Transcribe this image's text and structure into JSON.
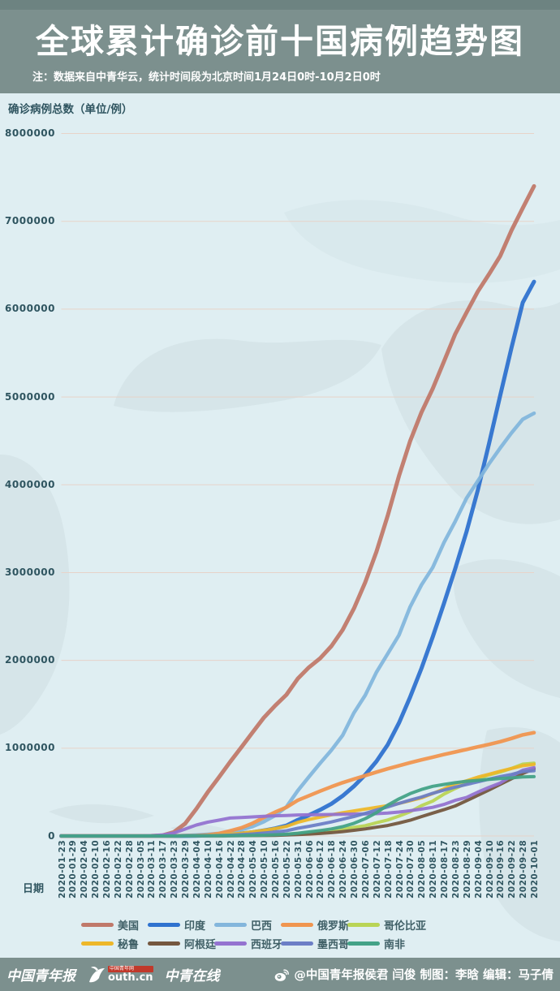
{
  "header": {
    "title": "全球累计确诊前十国病例趋势图",
    "note": "注：数据来自中青华云，统计时间段为北京时间1月24日0时-10月2日0时"
  },
  "footer": {
    "logo_cyd": "中国青年报",
    "logo_youth_badge": "中国青年网",
    "logo_youth_text": "outh.cn",
    "logo_cyol": "中青在线",
    "credit": "@中国青年报侯君 闫俊 制图：李晗 编辑：马子倩"
  },
  "colors": {
    "header_bg": "#7c908e",
    "chart_bg": "#dfeef2",
    "grid": "#e7d3c9",
    "axis_text": "#2f5560",
    "map_silhouette": "#ccdde0"
  },
  "chart_data": {
    "type": "line",
    "title": "全球累计确诊前十国病例趋势图",
    "ylabel": "确诊病例总数（单位/例）",
    "xlabel": "日期",
    "ylim": [
      0,
      8000000
    ],
    "y_ticks": [
      0,
      1000000,
      2000000,
      3000000,
      4000000,
      5000000,
      6000000,
      7000000,
      8000000
    ],
    "grid": true,
    "legend_position": "bottom",
    "x": [
      "2020-01-23",
      "2020-01-29",
      "2020-02-04",
      "2020-02-10",
      "2020-02-16",
      "2020-02-22",
      "2020-02-28",
      "2020-03-05",
      "2020-03-11",
      "2020-03-17",
      "2020-03-23",
      "2020-03-29",
      "2020-04-04",
      "2020-04-10",
      "2020-04-16",
      "2020-04-22",
      "2020-04-28",
      "2020-05-04",
      "2020-05-10",
      "2020-05-16",
      "2020-05-22",
      "2020-05-31",
      "2020-06-06",
      "2020-06-12",
      "2020-06-18",
      "2020-06-24",
      "2020-06-30",
      "2020-07-06",
      "2020-07-12",
      "2020-07-18",
      "2020-07-24",
      "2020-07-30",
      "2020-08-05",
      "2020-08-11",
      "2020-08-17",
      "2020-08-23",
      "2020-08-29",
      "2020-09-04",
      "2020-09-10",
      "2020-09-16",
      "2020-09-22",
      "2020-09-28",
      "2020-10-01"
    ],
    "series": [
      {
        "key": "usa",
        "name": "美国",
        "color": "#c0796a",
        "width": 5,
        "values": [
          1,
          5,
          11,
          12,
          15,
          35,
          60,
          220,
          1300,
          6400,
          43800,
          140900,
          308850,
          496500,
          667800,
          842600,
          1010500,
          1180000,
          1347900,
          1484300,
          1608600,
          1790200,
          1920000,
          2023300,
          2163300,
          2347100,
          2590600,
          2888700,
          3236100,
          3647700,
          4100000,
          4498500,
          4823900,
          5094400,
          5403200,
          5715600,
          5961000,
          6200000,
          6397200,
          6606300,
          6897600,
          7150600,
          7400000
        ]
      },
      {
        "key": "india",
        "name": "印度",
        "color": "#2f72cf",
        "width": 5,
        "values": [
          0,
          0,
          0,
          0,
          3,
          3,
          3,
          30,
          62,
          140,
          430,
          1000,
          2900,
          6700,
          12400,
          20000,
          29400,
          42500,
          62900,
          85900,
          118400,
          182100,
          236700,
          297500,
          366900,
          456200,
          566800,
          697400,
          849500,
          1038700,
          1288000,
          1583800,
          1908300,
          2268700,
          2647700,
          3044900,
          3463900,
          3936700,
          4465900,
          5020400,
          5562700,
          6074700,
          6312600
        ]
      },
      {
        "key": "brazil",
        "name": "巴西",
        "color": "#83b6dc",
        "width": 4.5,
        "values": [
          0,
          0,
          0,
          0,
          0,
          0,
          1,
          4,
          34,
          290,
          1900,
          4260,
          10300,
          18100,
          28900,
          45800,
          71900,
          107800,
          162700,
          233100,
          330900,
          514800,
          672800,
          828800,
          978100,
          1145900,
          1402000,
          1603000,
          1864700,
          2074900,
          2287400,
          2610100,
          2859100,
          3057500,
          3340200,
          3582400,
          3846200,
          4041600,
          4238400,
          4419100,
          4591400,
          4745500,
          4813600
        ]
      },
      {
        "key": "russia",
        "name": "俄罗斯",
        "color": "#f0954f",
        "width": 4.5,
        "values": [
          0,
          0,
          2,
          2,
          2,
          2,
          2,
          4,
          20,
          114,
          438,
          1530,
          4700,
          11900,
          27900,
          57900,
          93500,
          145200,
          209700,
          272000,
          326400,
          405800,
          458100,
          511400,
          561100,
          606900,
          647800,
          687800,
          727200,
          765400,
          800800,
          834500,
          866600,
          897600,
          927700,
          956700,
          985300,
          1015100,
          1042800,
          1073800,
          1111200,
          1151400,
          1176300
        ]
      },
      {
        "key": "colombia",
        "name": "哥伦比亚",
        "color": "#b9d455",
        "width": 4,
        "values": [
          0,
          0,
          0,
          0,
          0,
          0,
          0,
          0,
          3,
          65,
          277,
          700,
          1400,
          2400,
          3100,
          4300,
          5600,
          7700,
          10500,
          14200,
          18300,
          29400,
          36600,
          45300,
          60200,
          77100,
          97800,
          117100,
          150400,
          182100,
          226400,
          276100,
          345700,
          397600,
          476600,
          541100,
          599900,
          650100,
          694700,
          728600,
          770400,
          818200,
          829700
        ]
      },
      {
        "key": "peru",
        "name": "秘鲁",
        "color": "#edb72a",
        "width": 4,
        "values": [
          0,
          0,
          0,
          0,
          0,
          0,
          0,
          0,
          17,
          117,
          395,
          852,
          1700,
          5900,
          11500,
          19300,
          31200,
          47400,
          65000,
          84500,
          108800,
          155700,
          187400,
          214800,
          240900,
          264700,
          285200,
          305700,
          326200,
          345500,
          370500,
          400700,
          433100,
          483100,
          535900,
          594300,
          629000,
          670100,
          702800,
          738000,
          768900,
          800100,
          814800
        ]
      },
      {
        "key": "argentina",
        "name": "阿根廷",
        "color": "#74573f",
        "width": 4,
        "values": [
          0,
          0,
          0,
          0,
          0,
          0,
          0,
          1,
          19,
          65,
          266,
          745,
          1450,
          1975,
          2571,
          3144,
          4003,
          4887,
          5776,
          7479,
          10649,
          16851,
          22020,
          28764,
          37510,
          49851,
          64530,
          80447,
          100166,
          119301,
          148027,
          178996,
          220682,
          260911,
          299126,
          342154,
          401239,
          461882,
          524198,
          589012,
          652174,
          711325,
          765002
        ]
      },
      {
        "key": "spain",
        "name": "西班牙",
        "color": "#9473d0",
        "width": 4,
        "values": [
          0,
          0,
          1,
          2,
          2,
          2,
          32,
          260,
          2280,
          11300,
          33100,
          78800,
          124700,
          157000,
          180700,
          204200,
          210800,
          217500,
          224400,
          230200,
          234000,
          239400,
          241300,
          243000,
          245300,
          247100,
          249300,
          252100,
          254600,
          260300,
          272400,
          288500,
          305800,
          326600,
          359100,
          405400,
          439300,
          498900,
          554100,
          603200,
          682300,
          748300,
          778600
        ]
      },
      {
        "key": "mexico",
        "name": "墨西哥",
        "color": "#6c7ec6",
        "width": 4,
        "values": [
          0,
          0,
          0,
          0,
          0,
          0,
          0,
          5,
          11,
          93,
          367,
          993,
          1890,
          3440,
          5850,
          9500,
          15500,
          23500,
          33500,
          45000,
          59600,
          87500,
          110000,
          133900,
          159800,
          191400,
          220700,
          256800,
          295300,
          331300,
          370700,
          408400,
          443800,
          485800,
          522200,
          556200,
          585700,
          616500,
          647500,
          676500,
          700600,
          733700,
          743200
        ]
      },
      {
        "key": "south-africa",
        "name": "南非",
        "color": "#43a287",
        "width": 4,
        "values": [
          0,
          0,
          0,
          0,
          0,
          0,
          0,
          0,
          13,
          62,
          402,
          1280,
          1585,
          2003,
          2506,
          3465,
          4793,
          6783,
          9420,
          13524,
          19137,
          30967,
          45973,
          61927,
          80412,
          106108,
          144264,
          196750,
          264184,
          350879,
          421996,
          482169,
          529877,
          566109,
          587345,
          607045,
          622551,
          633015,
          644438,
          653444,
          661936,
          671669,
          676084
        ]
      }
    ]
  }
}
